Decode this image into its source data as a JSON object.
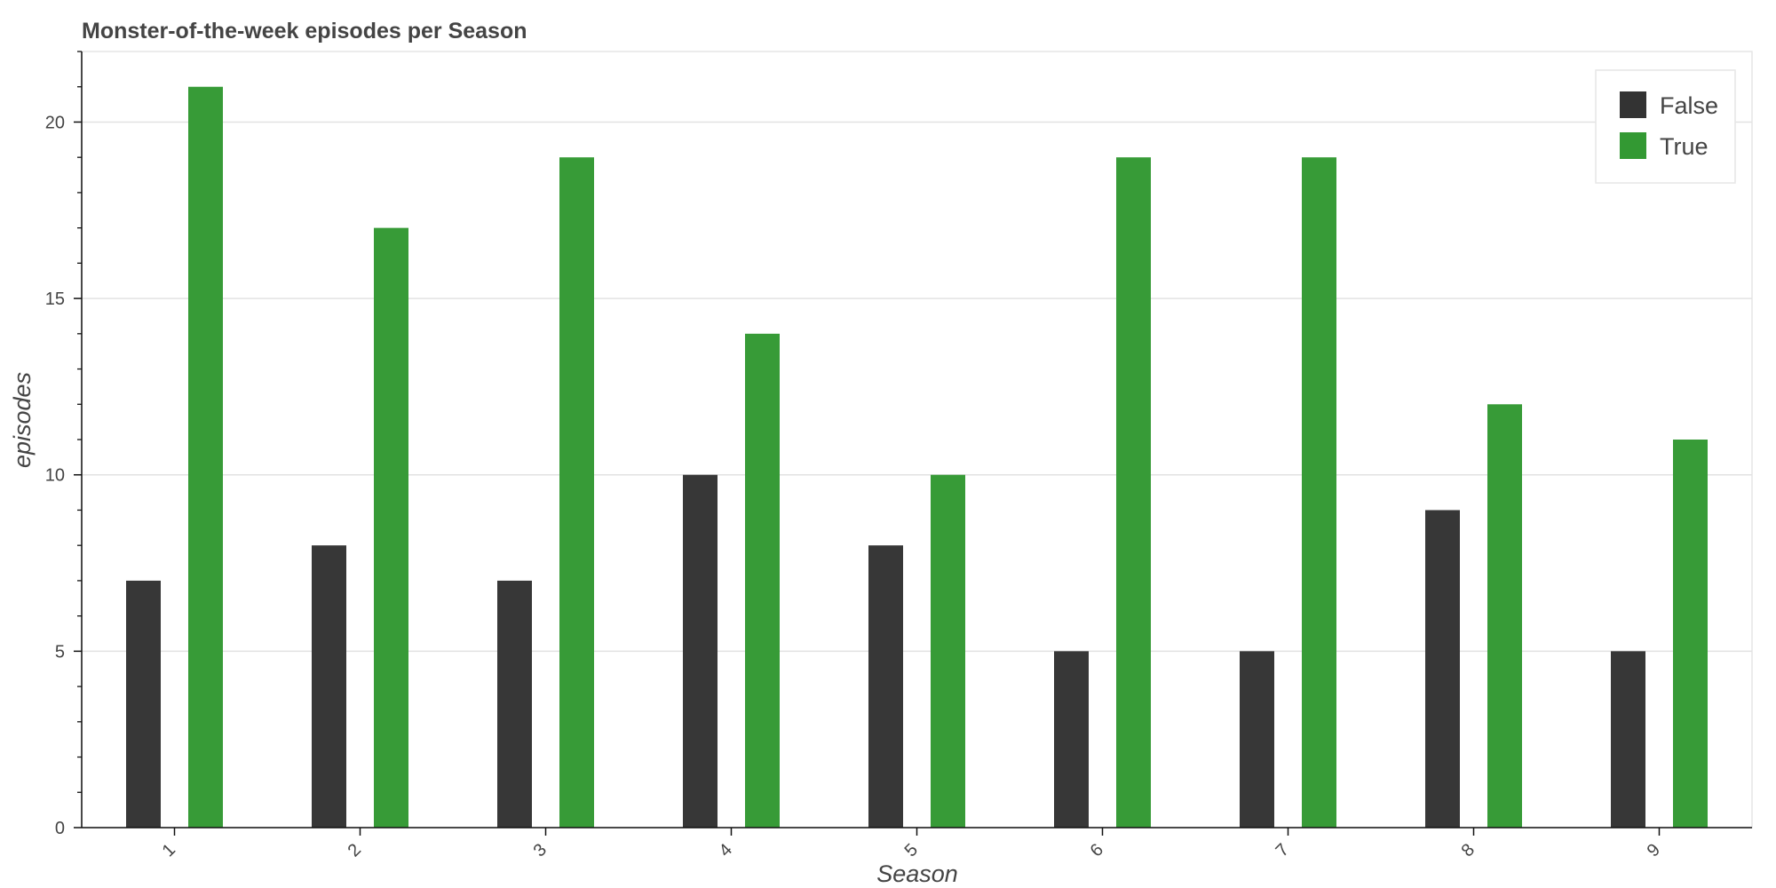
{
  "chart_data": {
    "type": "bar",
    "title": "Monster-of-the-week episodes per Season",
    "xlabel": "Season",
    "ylabel": "episodes",
    "categories": [
      "1",
      "2",
      "3",
      "4",
      "5",
      "6",
      "7",
      "8",
      "9"
    ],
    "series": [
      {
        "name": "False",
        "color": "#333333",
        "values": [
          7,
          8,
          7,
          10,
          8,
          5,
          5,
          9,
          5
        ]
      },
      {
        "name": "True",
        "color": "#339933",
        "values": [
          21,
          17,
          19,
          14,
          10,
          19,
          19,
          12,
          11
        ]
      }
    ],
    "ylim": [
      0,
      22
    ],
    "y_ticks": [
      0,
      5,
      10,
      15,
      20
    ],
    "grid": true,
    "legend_position": "top-right"
  }
}
